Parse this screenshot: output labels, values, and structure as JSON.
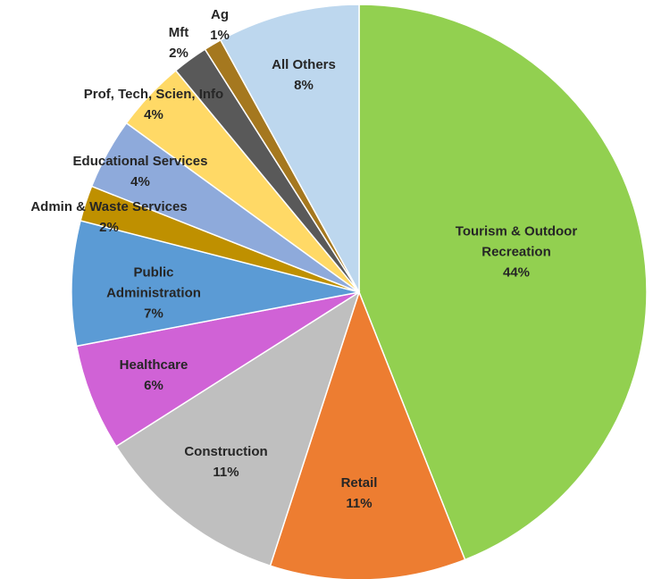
{
  "chart_data": {
    "type": "pie",
    "categories": [
      "Tourism & Outdoor Recreation",
      "Retail",
      "Construction",
      "Healthcare",
      "Public Administration",
      "Admin & Waste Services",
      "Educational Services",
      "Prof, Tech, Scien, Info",
      "Mft",
      "Ag",
      "All Others"
    ],
    "values": [
      44,
      11,
      11,
      6,
      7,
      2,
      4,
      4,
      2,
      1,
      8
    ],
    "value_labels": [
      "44%",
      "11%",
      "11%",
      "6%",
      "7%",
      "2%",
      "4%",
      "4%",
      "2%",
      "1%",
      "8%"
    ],
    "colors": [
      "#92d050",
      "#ed7d31",
      "#bfbfbf",
      "#d062d6",
      "#5b9bd5",
      "#bf9000",
      "#8eaadb",
      "#ffd966",
      "#595959",
      "#a5781f",
      "#bdd7ee"
    ]
  }
}
